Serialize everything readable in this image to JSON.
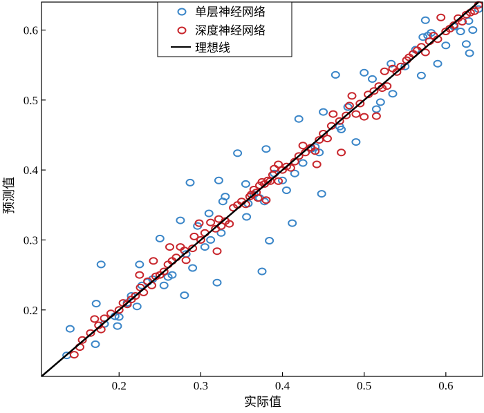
{
  "chart_data": {
    "type": "scatter",
    "xlabel": "实际值",
    "ylabel": "预测值",
    "xlim": [
      0.105,
      0.645
    ],
    "ylim": [
      0.105,
      0.64
    ],
    "xticks": [
      "0.2",
      "0.3",
      "0.4",
      "0.5",
      "0.6"
    ],
    "yticks": [
      "0.2",
      "0.3",
      "0.4",
      "0.5",
      "0.6"
    ],
    "grid": false,
    "legend": "top-left",
    "series": [
      {
        "name": "单层神经网络",
        "marker": "hollow-circle",
        "color": "#3b86c8",
        "points": [
          [
            0.136,
            0.135
          ],
          [
            0.14,
            0.173
          ],
          [
            0.171,
            0.151
          ],
          [
            0.172,
            0.209
          ],
          [
            0.178,
            0.265
          ],
          [
            0.182,
            0.18
          ],
          [
            0.195,
            0.191
          ],
          [
            0.198,
            0.177
          ],
          [
            0.2,
            0.19
          ],
          [
            0.21,
            0.21
          ],
          [
            0.215,
            0.22
          ],
          [
            0.222,
            0.205
          ],
          [
            0.225,
            0.265
          ],
          [
            0.228,
            0.235
          ],
          [
            0.235,
            0.24
          ],
          [
            0.241,
            0.244
          ],
          [
            0.25,
            0.302
          ],
          [
            0.255,
            0.235
          ],
          [
            0.26,
            0.247
          ],
          [
            0.265,
            0.25
          ],
          [
            0.275,
            0.328
          ],
          [
            0.28,
            0.221
          ],
          [
            0.282,
            0.28
          ],
          [
            0.287,
            0.382
          ],
          [
            0.29,
            0.26
          ],
          [
            0.296,
            0.32
          ],
          [
            0.305,
            0.29
          ],
          [
            0.31,
            0.338
          ],
          [
            0.312,
            0.3
          ],
          [
            0.32,
            0.239
          ],
          [
            0.322,
            0.385
          ],
          [
            0.325,
            0.31
          ],
          [
            0.327,
            0.355
          ],
          [
            0.33,
            0.362
          ],
          [
            0.345,
            0.424
          ],
          [
            0.355,
            0.38
          ],
          [
            0.356,
            0.333
          ],
          [
            0.358,
            0.352
          ],
          [
            0.365,
            0.365
          ],
          [
            0.372,
            0.36
          ],
          [
            0.375,
            0.255
          ],
          [
            0.378,
            0.355
          ],
          [
            0.38,
            0.43
          ],
          [
            0.384,
            0.299
          ],
          [
            0.39,
            0.395
          ],
          [
            0.4,
            0.385
          ],
          [
            0.405,
            0.371
          ],
          [
            0.412,
            0.324
          ],
          [
            0.415,
            0.395
          ],
          [
            0.42,
            0.473
          ],
          [
            0.425,
            0.41
          ],
          [
            0.435,
            0.43
          ],
          [
            0.44,
            0.433
          ],
          [
            0.445,
            0.425
          ],
          [
            0.448,
            0.366
          ],
          [
            0.45,
            0.483
          ],
          [
            0.465,
            0.536
          ],
          [
            0.47,
            0.462
          ],
          [
            0.472,
            0.458
          ],
          [
            0.48,
            0.49
          ],
          [
            0.49,
            0.44
          ],
          [
            0.5,
            0.539
          ],
          [
            0.51,
            0.53
          ],
          [
            0.515,
            0.487
          ],
          [
            0.52,
            0.497
          ],
          [
            0.533,
            0.552
          ],
          [
            0.535,
            0.509
          ],
          [
            0.55,
            0.548
          ],
          [
            0.563,
            0.572
          ],
          [
            0.57,
            0.535
          ],
          [
            0.572,
            0.59
          ],
          [
            0.575,
            0.614
          ],
          [
            0.578,
            0.592
          ],
          [
            0.582,
            0.596
          ],
          [
            0.59,
            0.552
          ],
          [
            0.6,
            0.578
          ],
          [
            0.61,
            0.605
          ],
          [
            0.618,
            0.598
          ],
          [
            0.625,
            0.58
          ],
          [
            0.628,
            0.613
          ],
          [
            0.629,
            0.567
          ],
          [
            0.633,
            0.6
          ],
          [
            0.64,
            0.63
          ]
        ]
      },
      {
        "name": "深度神经网络",
        "marker": "hollow-circle",
        "color": "#c8262c",
        "points": [
          [
            0.145,
            0.136
          ],
          [
            0.152,
            0.147
          ],
          [
            0.155,
            0.157
          ],
          [
            0.165,
            0.167
          ],
          [
            0.17,
            0.187
          ],
          [
            0.175,
            0.178
          ],
          [
            0.178,
            0.172
          ],
          [
            0.182,
            0.188
          ],
          [
            0.19,
            0.195
          ],
          [
            0.2,
            0.2
          ],
          [
            0.205,
            0.21
          ],
          [
            0.21,
            0.208
          ],
          [
            0.215,
            0.215
          ],
          [
            0.22,
            0.22
          ],
          [
            0.225,
            0.25
          ],
          [
            0.226,
            0.232
          ],
          [
            0.23,
            0.225
          ],
          [
            0.235,
            0.241
          ],
          [
            0.24,
            0.235
          ],
          [
            0.242,
            0.27
          ],
          [
            0.245,
            0.248
          ],
          [
            0.25,
            0.25
          ],
          [
            0.255,
            0.255
          ],
          [
            0.26,
            0.265
          ],
          [
            0.262,
            0.29
          ],
          [
            0.265,
            0.27
          ],
          [
            0.27,
            0.275
          ],
          [
            0.275,
            0.29
          ],
          [
            0.28,
            0.285
          ],
          [
            0.282,
            0.271
          ],
          [
            0.29,
            0.288
          ],
          [
            0.292,
            0.305
          ],
          [
            0.298,
            0.324
          ],
          [
            0.3,
            0.3
          ],
          [
            0.305,
            0.31
          ],
          [
            0.312,
            0.325
          ],
          [
            0.318,
            0.316
          ],
          [
            0.322,
            0.33
          ],
          [
            0.325,
            0.32
          ],
          [
            0.32,
            0.284
          ],
          [
            0.33,
            0.327
          ],
          [
            0.335,
            0.323
          ],
          [
            0.34,
            0.346
          ],
          [
            0.345,
            0.35
          ],
          [
            0.35,
            0.355
          ],
          [
            0.355,
            0.351
          ],
          [
            0.36,
            0.362
          ],
          [
            0.362,
            0.365
          ],
          [
            0.365,
            0.372
          ],
          [
            0.368,
            0.368
          ],
          [
            0.37,
            0.36
          ],
          [
            0.372,
            0.378
          ],
          [
            0.375,
            0.383
          ],
          [
            0.378,
            0.38
          ],
          [
            0.38,
            0.357
          ],
          [
            0.382,
            0.385
          ],
          [
            0.385,
            0.384
          ],
          [
            0.388,
            0.393
          ],
          [
            0.39,
            0.402
          ],
          [
            0.395,
            0.408
          ],
          [
            0.395,
            0.384
          ],
          [
            0.4,
            0.4
          ],
          [
            0.405,
            0.405
          ],
          [
            0.41,
            0.403
          ],
          [
            0.415,
            0.412
          ],
          [
            0.42,
            0.42
          ],
          [
            0.425,
            0.435
          ],
          [
            0.428,
            0.425
          ],
          [
            0.435,
            0.432
          ],
          [
            0.44,
            0.427
          ],
          [
            0.442,
            0.408
          ],
          [
            0.445,
            0.443
          ],
          [
            0.45,
            0.452
          ],
          [
            0.455,
            0.445
          ],
          [
            0.46,
            0.463
          ],
          [
            0.462,
            0.48
          ],
          [
            0.47,
            0.47
          ],
          [
            0.472,
            0.425
          ],
          [
            0.478,
            0.478
          ],
          [
            0.482,
            0.492
          ],
          [
            0.485,
            0.506
          ],
          [
            0.49,
            0.48
          ],
          [
            0.495,
            0.495
          ],
          [
            0.5,
            0.476
          ],
          [
            0.505,
            0.508
          ],
          [
            0.512,
            0.513
          ],
          [
            0.515,
            0.477
          ],
          [
            0.518,
            0.52
          ],
          [
            0.522,
            0.517
          ],
          [
            0.525,
            0.541
          ],
          [
            0.528,
            0.52
          ],
          [
            0.535,
            0.545
          ],
          [
            0.54,
            0.54
          ],
          [
            0.545,
            0.548
          ],
          [
            0.552,
            0.557
          ],
          [
            0.555,
            0.561
          ],
          [
            0.56,
            0.566
          ],
          [
            0.565,
            0.571
          ],
          [
            0.57,
            0.576
          ],
          [
            0.575,
            0.568
          ],
          [
            0.58,
            0.584
          ],
          [
            0.585,
            0.592
          ],
          [
            0.59,
            0.587
          ],
          [
            0.594,
            0.618
          ],
          [
            0.6,
            0.598
          ],
          [
            0.605,
            0.602
          ],
          [
            0.61,
            0.607
          ],
          [
            0.615,
            0.617
          ],
          [
            0.62,
            0.612
          ],
          [
            0.625,
            0.622
          ],
          [
            0.63,
            0.625
          ],
          [
            0.635,
            0.627
          ],
          [
            0.64,
            0.636
          ]
        ]
      }
    ],
    "ideal_line": {
      "name": "理想线",
      "from": [
        0.105,
        0.105
      ],
      "to": [
        0.645,
        0.645
      ],
      "color": "#000000"
    }
  }
}
